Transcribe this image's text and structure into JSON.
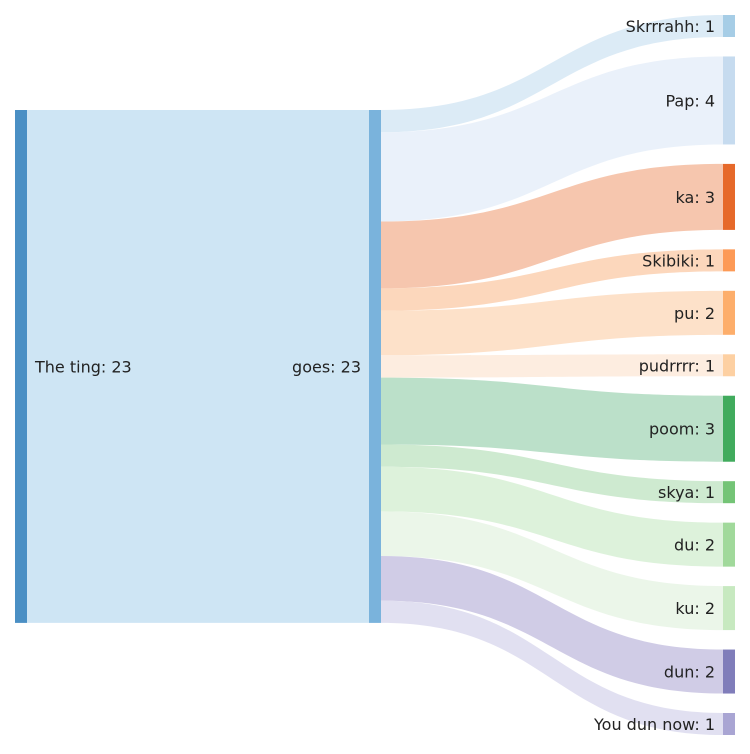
{
  "chart_data": {
    "type": "sankey",
    "nodes": [
      {
        "id": "the_ting",
        "label": "The ting: 23",
        "value": 23,
        "color": "#4a8fc4"
      },
      {
        "id": "goes",
        "label": "goes: 23",
        "value": 23,
        "color": "#7ab3dc"
      },
      {
        "id": "skrrrahh",
        "label": "Skrrrahh: 1",
        "value": 1,
        "color": "#a6cde6",
        "link_color": "#d6e8f5"
      },
      {
        "id": "pap",
        "label": "Pap: 4",
        "value": 4,
        "color": "#c6dbef",
        "link_color": "#e6eff9"
      },
      {
        "id": "ka",
        "label": "ka: 3",
        "value": 3,
        "color": "#e6692a",
        "link_color": "#f5bca0"
      },
      {
        "id": "skibiki",
        "label": "Skibiki: 1",
        "value": 1,
        "color": "#fd9a56",
        "link_color": "#fcd0b0"
      },
      {
        "id": "pu",
        "label": "pu: 2",
        "value": 2,
        "color": "#fdae6b",
        "link_color": "#fddcc0"
      },
      {
        "id": "pudrrrr",
        "label": "pudrrrr: 1",
        "value": 1,
        "color": "#fdd0a2",
        "link_color": "#fdeadb"
      },
      {
        "id": "poom",
        "label": "poom: 3",
        "value": 3,
        "color": "#41ab5d",
        "link_color": "#afdabf"
      },
      {
        "id": "skya",
        "label": "skya: 1",
        "value": 1,
        "color": "#74c476",
        "link_color": "#c6e6c8"
      },
      {
        "id": "du",
        "label": "du: 2",
        "value": 2,
        "color": "#a1d99b",
        "link_color": "#d7f0d5"
      },
      {
        "id": "ku",
        "label": "ku: 2",
        "value": 2,
        "color": "#c7e9c0",
        "link_color": "#e8f5e5"
      },
      {
        "id": "dun",
        "label": "dun: 2",
        "value": 2,
        "color": "#807dba",
        "link_color": "#c8c3e2"
      },
      {
        "id": "you_dun_now",
        "label": "You dun now: 1",
        "value": 1,
        "color": "#a9a5d3",
        "link_color": "#dcdaee"
      }
    ],
    "links": [
      {
        "source": "the_ting",
        "target": "goes",
        "value": 23,
        "color": "#c6e0f2"
      },
      {
        "source": "goes",
        "target": "skrrrahh",
        "value": 1
      },
      {
        "source": "goes",
        "target": "pap",
        "value": 4
      },
      {
        "source": "goes",
        "target": "ka",
        "value": 3
      },
      {
        "source": "goes",
        "target": "skibiki",
        "value": 1
      },
      {
        "source": "goes",
        "target": "pu",
        "value": 2
      },
      {
        "source": "goes",
        "target": "pudrrrr",
        "value": 1
      },
      {
        "source": "goes",
        "target": "poom",
        "value": 3
      },
      {
        "source": "goes",
        "target": "skya",
        "value": 1
      },
      {
        "source": "goes",
        "target": "du",
        "value": 2
      },
      {
        "source": "goes",
        "target": "ku",
        "value": 2
      },
      {
        "source": "goes",
        "target": "dun",
        "value": 2
      },
      {
        "source": "goes",
        "target": "you_dun_now",
        "value": 1
      }
    ]
  }
}
